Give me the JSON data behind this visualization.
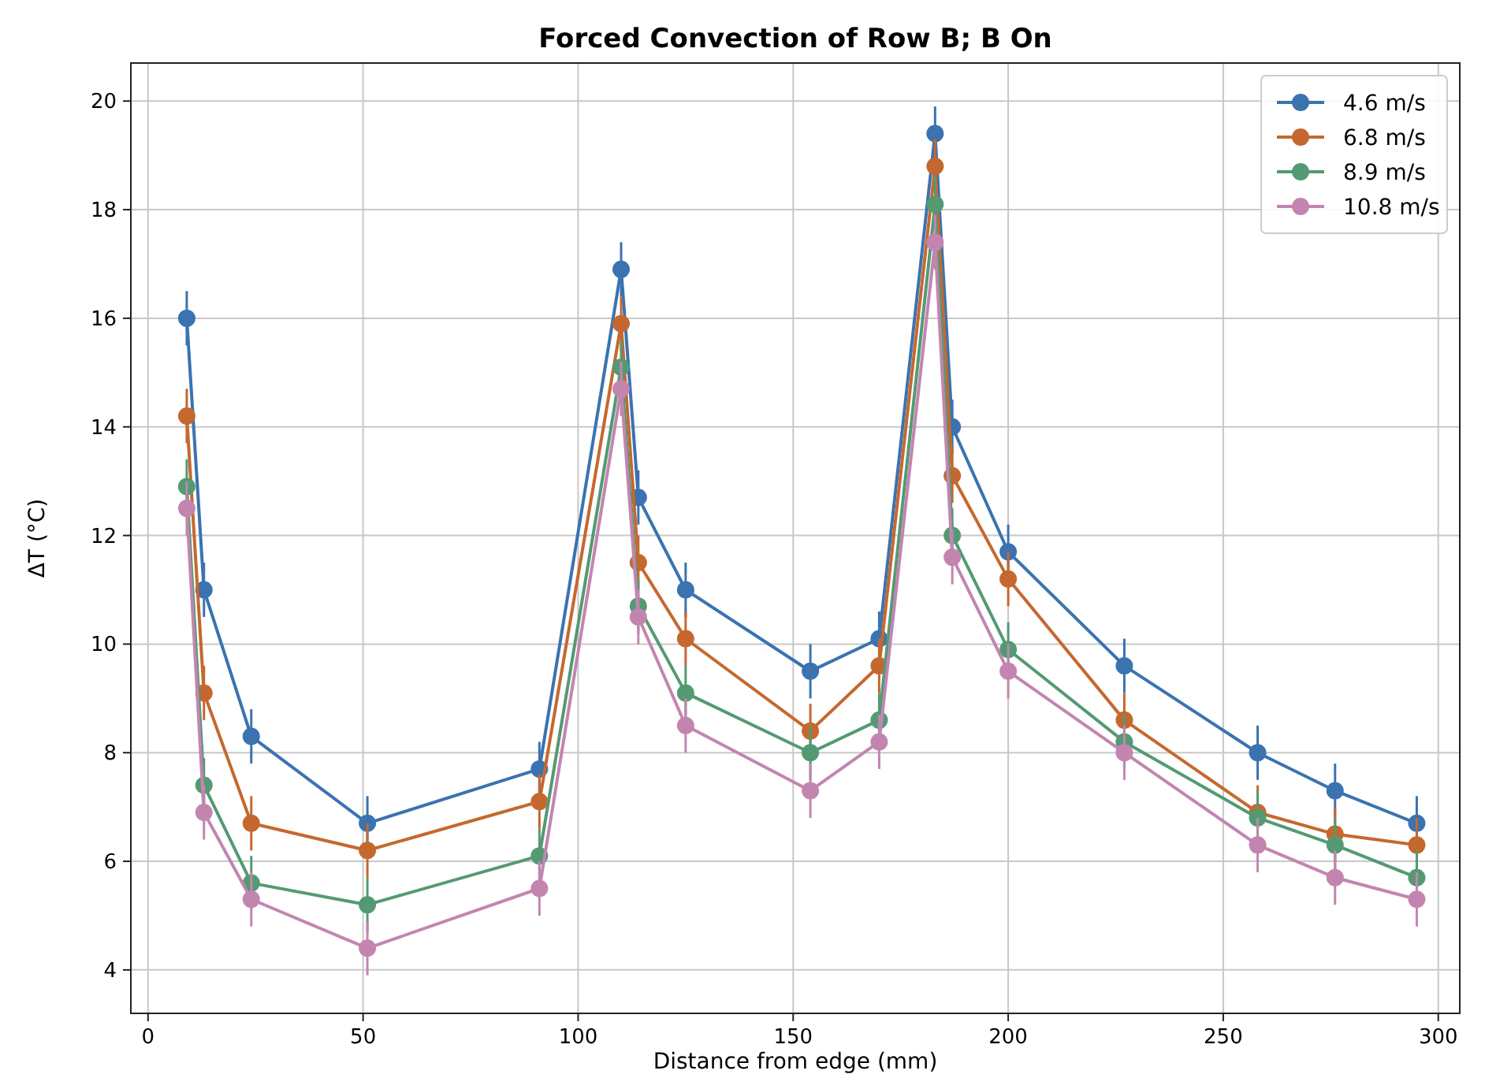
{
  "chart_data": {
    "type": "line",
    "title": "Forced Convection of Row B; B On",
    "xlabel": "Distance from edge (mm)",
    "ylabel": "ΔT (°C)",
    "x": [
      9,
      13,
      24,
      51,
      91,
      110,
      114,
      125,
      154,
      170,
      183,
      187,
      200,
      227,
      258,
      276,
      295
    ],
    "series": [
      {
        "name": "4.6 m/s",
        "color": "#3a73b0",
        "values": [
          16.0,
          11.0,
          8.3,
          6.7,
          7.7,
          16.9,
          12.7,
          11.0,
          9.5,
          10.1,
          19.4,
          14.0,
          11.7,
          9.6,
          8.0,
          7.3,
          6.7
        ],
        "errors": [
          0.5,
          0.5,
          0.5,
          0.5,
          0.5,
          0.5,
          0.5,
          0.5,
          0.5,
          0.5,
          0.5,
          0.5,
          0.5,
          0.5,
          0.5,
          0.5,
          0.5
        ]
      },
      {
        "name": "6.8 m/s",
        "color": "#c5682f",
        "values": [
          14.2,
          9.1,
          6.7,
          6.2,
          7.1,
          15.9,
          11.5,
          10.1,
          8.4,
          9.6,
          18.8,
          13.1,
          11.2,
          8.6,
          6.9,
          6.5,
          6.3
        ],
        "errors": [
          0.5,
          0.5,
          0.5,
          0.5,
          0.5,
          0.5,
          0.5,
          0.5,
          0.5,
          0.5,
          0.5,
          0.5,
          0.5,
          0.5,
          0.5,
          0.5,
          0.5
        ]
      },
      {
        "name": "8.9 m/s",
        "color": "#539a73",
        "values": [
          12.9,
          7.4,
          5.6,
          5.2,
          6.1,
          15.1,
          10.7,
          9.1,
          8.0,
          8.6,
          18.1,
          12.0,
          9.9,
          8.2,
          6.8,
          6.3,
          5.7
        ],
        "errors": [
          0.5,
          0.5,
          0.5,
          0.5,
          0.5,
          0.5,
          0.5,
          0.5,
          0.5,
          0.5,
          0.5,
          0.5,
          0.5,
          0.5,
          0.5,
          0.5,
          0.5
        ]
      },
      {
        "name": "10.8 m/s",
        "color": "#c385b0",
        "values": [
          12.5,
          6.9,
          5.3,
          4.4,
          5.5,
          14.7,
          10.5,
          8.5,
          7.3,
          8.2,
          17.4,
          11.6,
          9.5,
          8.0,
          6.3,
          5.7,
          5.3
        ],
        "errors": [
          0.5,
          0.5,
          0.5,
          0.5,
          0.5,
          0.5,
          0.5,
          0.5,
          0.5,
          0.5,
          0.5,
          0.5,
          0.5,
          0.5,
          0.5,
          0.5,
          0.5
        ]
      }
    ],
    "xlim": [
      -4,
      305
    ],
    "xticks": [
      0,
      50,
      100,
      150,
      200,
      250,
      300
    ],
    "ylim": [
      3.2,
      20.7
    ],
    "yticks": [
      4,
      6,
      8,
      10,
      12,
      14,
      16,
      18,
      20
    ],
    "grid": true,
    "legend": "top right",
    "marker": "circle",
    "line_style": "solid"
  }
}
